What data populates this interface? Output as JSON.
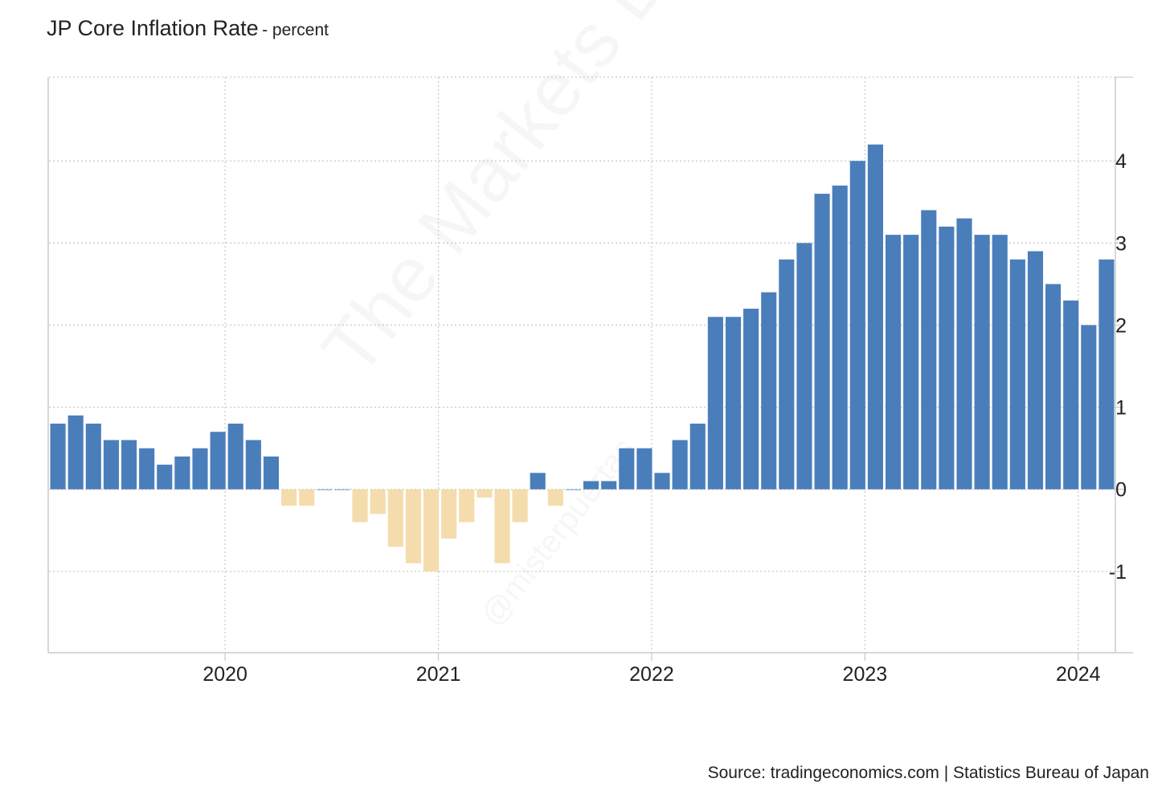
{
  "title": "JP Core Inflation Rate",
  "subtitle": "- percent",
  "source": "Source: tradingeconomics.com | Statistics Bureau of Japan",
  "watermark": "The Markets Eye",
  "watermark_handle": "@misterpuertas",
  "colors": {
    "positive": "#4a7ebb",
    "negative": "#f5dcac",
    "grid": "#cccccc",
    "axis": "#cccccc"
  },
  "chart_data": {
    "type": "bar",
    "x": [
      "2019-03",
      "2019-04",
      "2019-05",
      "2019-06",
      "2019-07",
      "2019-08",
      "2019-09",
      "2019-10",
      "2019-11",
      "2019-12",
      "2020-01",
      "2020-02",
      "2020-03",
      "2020-04",
      "2020-05",
      "2020-06",
      "2020-07",
      "2020-08",
      "2020-09",
      "2020-10",
      "2020-11",
      "2020-12",
      "2021-01",
      "2021-02",
      "2021-03",
      "2021-04",
      "2021-05",
      "2021-06",
      "2021-07",
      "2021-08",
      "2021-09",
      "2021-10",
      "2021-11",
      "2021-12",
      "2022-01",
      "2022-02",
      "2022-03",
      "2022-04",
      "2022-05",
      "2022-06",
      "2022-07",
      "2022-08",
      "2022-09",
      "2022-10",
      "2022-11",
      "2022-12",
      "2023-01",
      "2023-02",
      "2023-03",
      "2023-04",
      "2023-05",
      "2023-06",
      "2023-07",
      "2023-08",
      "2023-09",
      "2023-10",
      "2023-11",
      "2023-12",
      "2024-01",
      "2024-02"
    ],
    "values": [
      0.8,
      0.9,
      0.8,
      0.6,
      0.6,
      0.5,
      0.3,
      0.4,
      0.5,
      0.7,
      0.8,
      0.6,
      0.4,
      -0.2,
      -0.2,
      0.0,
      0.0,
      -0.4,
      -0.3,
      -0.7,
      -0.9,
      -1.0,
      -0.6,
      -0.4,
      -0.1,
      -0.9,
      -0.4,
      0.2,
      -0.2,
      0.0,
      0.1,
      0.1,
      0.5,
      0.5,
      0.2,
      0.6,
      0.8,
      2.1,
      2.1,
      2.2,
      2.4,
      2.8,
      3.0,
      3.6,
      3.7,
      4.0,
      4.2,
      3.1,
      3.1,
      3.4,
      3.2,
      3.3,
      3.1,
      3.1,
      2.8,
      2.9,
      2.5,
      2.3,
      2.0,
      2.8
    ],
    "y_ticks": [
      -1,
      0,
      1,
      2,
      3,
      4
    ],
    "y_tick_labels": [
      "-1",
      "0",
      "1",
      "2",
      "3",
      "4"
    ],
    "ylim": [
      -1.99,
      5.02
    ],
    "x_tick_labels": [
      "2020",
      "2021",
      "2022",
      "2023",
      "2024"
    ],
    "x_tick_dates": [
      "2020-01",
      "2021-01",
      "2022-01",
      "2023-01",
      "2024-01"
    ],
    "grid": true,
    "y_axis_side": "right"
  }
}
